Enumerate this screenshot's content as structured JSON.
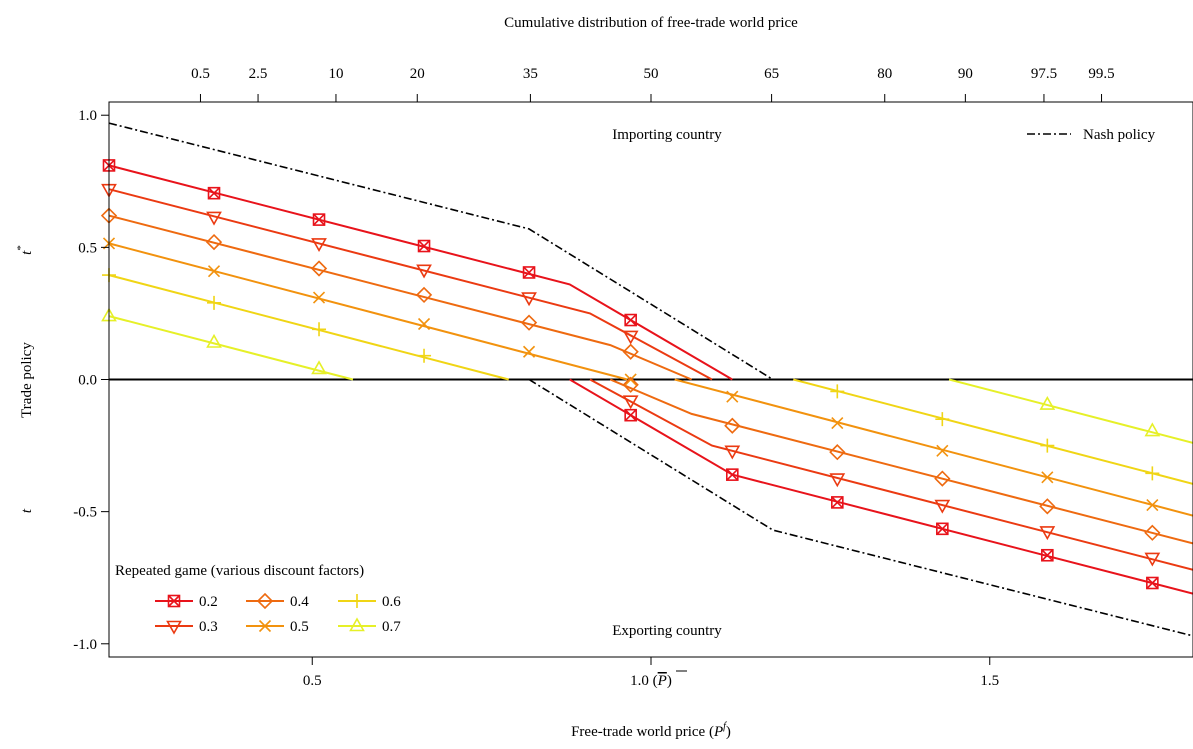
{
  "chart_data": {
    "type": "line",
    "title": "Cumulative distribution of free-trade world price",
    "xlabel_prefix": "Free-trade world price (",
    "xlabel_var": "P",
    "xlabel_sup": "f",
    "xlabel_suffix": ")",
    "ylabel": "Trade policy",
    "ylabel_top": "t",
    "ylabel_top_sup": "*",
    "ylabel_bottom": "t",
    "xlim": [
      0.2,
      1.8
    ],
    "ylim": [
      -1.05,
      1.05
    ],
    "x_ticks": [
      {
        "value": 0.5,
        "label": "0.5"
      },
      {
        "value": 1.0,
        "label": "1.0 (",
        "bar_label": "P",
        "close": ")"
      },
      {
        "value": 1.5,
        "label": "1.5"
      }
    ],
    "y_ticks": [
      {
        "value": 1.0,
        "label": "1.0"
      },
      {
        "value": 0.5,
        "label": "0.5"
      },
      {
        "value": 0.0,
        "label": "0.0"
      },
      {
        "value": -0.5,
        "label": "-0.5"
      },
      {
        "value": -1.0,
        "label": "-1.0"
      }
    ],
    "top_ticks": [
      {
        "value": 0.335,
        "label": "0.5"
      },
      {
        "value": 0.42,
        "label": "2.5"
      },
      {
        "value": 0.535,
        "label": "10"
      },
      {
        "value": 0.655,
        "label": "20"
      },
      {
        "value": 0.822,
        "label": "35"
      },
      {
        "value": 1.0,
        "label": "50"
      },
      {
        "value": 1.178,
        "label": "65"
      },
      {
        "value": 1.345,
        "label": "80"
      },
      {
        "value": 1.464,
        "label": "90"
      },
      {
        "value": 1.58,
        "label": "97.5"
      },
      {
        "value": 1.665,
        "label": "99.5"
      }
    ],
    "annotations": {
      "importing": "Importing country",
      "exporting": "Exporting country"
    },
    "nash": {
      "name": "Nash policy",
      "color": "#000000",
      "upper": [
        [
          0.2,
          0.97
        ],
        [
          0.82,
          0.57
        ],
        [
          1.18,
          0.0
        ]
      ],
      "lower": [
        [
          0.82,
          0.0
        ],
        [
          1.18,
          -0.57
        ],
        [
          1.8,
          -0.97
        ]
      ]
    },
    "legend_title": "Repeated game (various discount factors)",
    "series": [
      {
        "name": "0.2",
        "color": "#E8131B",
        "marker": "square-x",
        "upper": [
          [
            0.2,
            0.81
          ],
          [
            0.88,
            0.36
          ],
          [
            1.12,
            0.0
          ]
        ],
        "lower": [
          [
            0.88,
            0.0
          ],
          [
            1.12,
            -0.36
          ],
          [
            1.8,
            -0.81
          ]
        ],
        "markers_upper": [
          [
            0.2,
            0.81
          ],
          [
            0.355,
            0.705
          ],
          [
            0.51,
            0.605
          ],
          [
            0.665,
            0.505
          ],
          [
            0.82,
            0.405
          ],
          [
            0.97,
            0.225
          ]
        ],
        "markers_lower": [
          [
            0.97,
            -0.135
          ],
          [
            1.12,
            -0.36
          ],
          [
            1.275,
            -0.465
          ],
          [
            1.43,
            -0.565
          ],
          [
            1.585,
            -0.665
          ],
          [
            1.74,
            -0.77
          ]
        ]
      },
      {
        "name": "0.3",
        "color": "#EB3A12",
        "marker": "triangle-down",
        "upper": [
          [
            0.2,
            0.72
          ],
          [
            0.91,
            0.25
          ],
          [
            1.09,
            0.0
          ]
        ],
        "lower": [
          [
            0.91,
            0.0
          ],
          [
            1.09,
            -0.25
          ],
          [
            1.8,
            -0.72
          ]
        ],
        "markers_upper": [
          [
            0.2,
            0.72
          ],
          [
            0.355,
            0.615
          ],
          [
            0.51,
            0.515
          ],
          [
            0.665,
            0.415
          ],
          [
            0.82,
            0.31
          ],
          [
            0.97,
            0.165
          ]
        ],
        "markers_lower": [
          [
            0.97,
            -0.08
          ],
          [
            1.12,
            -0.27
          ],
          [
            1.275,
            -0.375
          ],
          [
            1.43,
            -0.475
          ],
          [
            1.585,
            -0.575
          ],
          [
            1.74,
            -0.675
          ]
        ]
      },
      {
        "name": "0.4",
        "color": "#EE6A10",
        "marker": "diamond",
        "upper": [
          [
            0.2,
            0.62
          ],
          [
            0.94,
            0.13
          ],
          [
            1.06,
            0.0
          ]
        ],
        "lower": [
          [
            0.94,
            0.0
          ],
          [
            1.06,
            -0.13
          ],
          [
            1.8,
            -0.62
          ]
        ],
        "markers_upper": [
          [
            0.2,
            0.62
          ],
          [
            0.355,
            0.52
          ],
          [
            0.51,
            0.42
          ],
          [
            0.665,
            0.32
          ],
          [
            0.82,
            0.215
          ],
          [
            0.97,
            0.105
          ]
        ],
        "markers_lower": [
          [
            0.97,
            -0.02
          ],
          [
            1.12,
            -0.175
          ],
          [
            1.275,
            -0.275
          ],
          [
            1.43,
            -0.375
          ],
          [
            1.585,
            -0.48
          ],
          [
            1.74,
            -0.58
          ]
        ]
      },
      {
        "name": "0.5",
        "color": "#F2920E",
        "marker": "x",
        "upper": [
          [
            0.2,
            0.515
          ],
          [
            0.965,
            0.0
          ]
        ],
        "lower": [
          [
            1.035,
            0.0
          ],
          [
            1.8,
            -0.515
          ]
        ],
        "markers_upper": [
          [
            0.2,
            0.515
          ],
          [
            0.355,
            0.41
          ],
          [
            0.51,
            0.31
          ],
          [
            0.665,
            0.21
          ],
          [
            0.82,
            0.105
          ],
          [
            0.97,
            0.0
          ]
        ],
        "markers_lower": [
          [
            1.12,
            -0.065
          ],
          [
            1.275,
            -0.165
          ],
          [
            1.43,
            -0.27
          ],
          [
            1.585,
            -0.37
          ],
          [
            1.74,
            -0.475
          ]
        ]
      },
      {
        "name": "0.6",
        "color": "#F0D515",
        "marker": "plus",
        "upper": [
          [
            0.2,
            0.395
          ],
          [
            0.79,
            0.0
          ]
        ],
        "lower": [
          [
            1.21,
            0.0
          ],
          [
            1.8,
            -0.395
          ]
        ],
        "markers_upper": [
          [
            0.2,
            0.395
          ],
          [
            0.355,
            0.29
          ],
          [
            0.51,
            0.19
          ],
          [
            0.665,
            0.09
          ]
        ],
        "markers_lower": [
          [
            1.275,
            -0.045
          ],
          [
            1.43,
            -0.15
          ],
          [
            1.585,
            -0.25
          ],
          [
            1.74,
            -0.355
          ]
        ]
      },
      {
        "name": "0.7",
        "color": "#E6F028",
        "marker": "triangle-up",
        "upper": [
          [
            0.2,
            0.24
          ],
          [
            0.56,
            0.0
          ]
        ],
        "lower": [
          [
            1.44,
            0.0
          ],
          [
            1.8,
            -0.24
          ]
        ],
        "markers_upper": [
          [
            0.2,
            0.24
          ],
          [
            0.355,
            0.14
          ],
          [
            0.51,
            0.04
          ]
        ],
        "markers_lower": [
          [
            1.585,
            -0.095
          ],
          [
            1.74,
            -0.195
          ]
        ]
      }
    ]
  }
}
